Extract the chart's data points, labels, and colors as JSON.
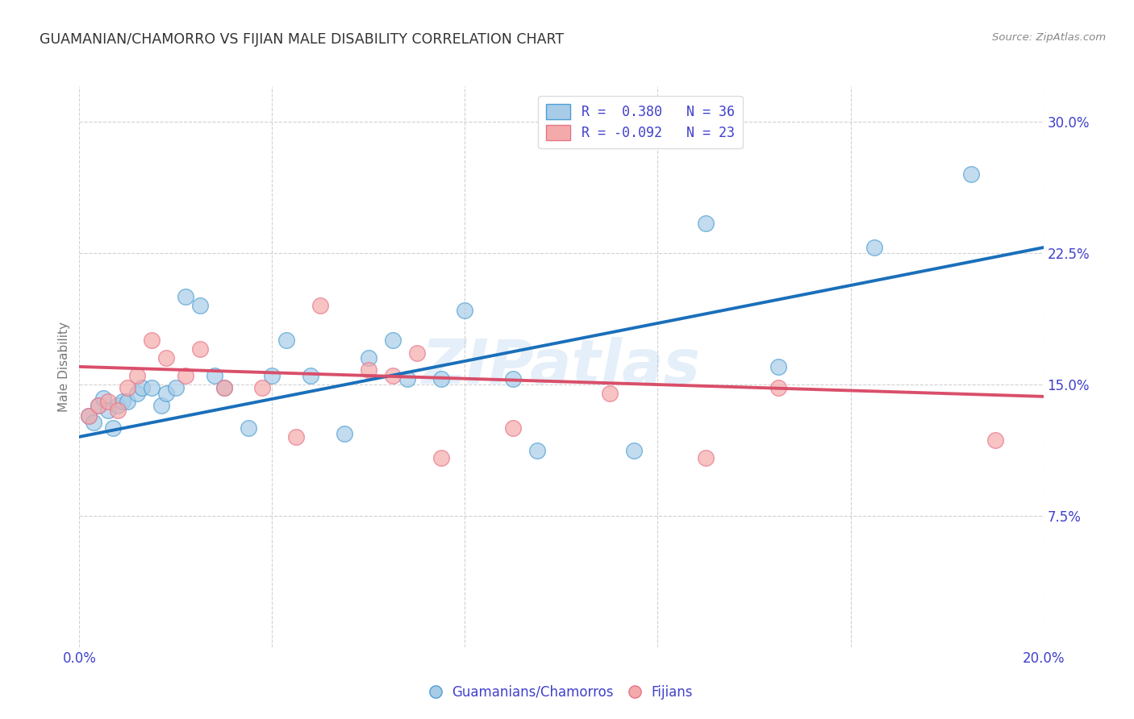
{
  "title": "GUAMANIAN/CHAMORRO VS FIJIAN MALE DISABILITY CORRELATION CHART",
  "source": "Source: ZipAtlas.com",
  "ylabel": "Male Disability",
  "xlim": [
    0.0,
    0.2
  ],
  "ylim": [
    0.0,
    0.32
  ],
  "xticks": [
    0.0,
    0.04,
    0.08,
    0.12,
    0.16,
    0.2
  ],
  "xticklabels": [
    "0.0%",
    "",
    "",
    "",
    "",
    "20.0%"
  ],
  "yticks": [
    0.075,
    0.15,
    0.225,
    0.3
  ],
  "yticklabels": [
    "7.5%",
    "15.0%",
    "22.5%",
    "30.0%"
  ],
  "blue_color": "#a8cce8",
  "pink_color": "#f4aaaa",
  "blue_edge_color": "#4d9fd4",
  "pink_edge_color": "#e8748a",
  "blue_line_color": "#1a6fba",
  "pink_line_color": "#d94f6a",
  "watermark": "ZIPatlas",
  "blue_scatter_x": [
    0.002,
    0.003,
    0.004,
    0.005,
    0.006,
    0.007,
    0.008,
    0.009,
    0.01,
    0.012,
    0.013,
    0.015,
    0.017,
    0.018,
    0.02,
    0.022,
    0.025,
    0.028,
    0.03,
    0.035,
    0.04,
    0.043,
    0.048,
    0.055,
    0.06,
    0.065,
    0.068,
    0.075,
    0.08,
    0.09,
    0.095,
    0.115,
    0.13,
    0.145,
    0.165,
    0.185
  ],
  "blue_scatter_y": [
    0.132,
    0.128,
    0.138,
    0.142,
    0.135,
    0.125,
    0.138,
    0.14,
    0.14,
    0.145,
    0.148,
    0.148,
    0.138,
    0.145,
    0.148,
    0.2,
    0.195,
    0.155,
    0.148,
    0.125,
    0.155,
    0.175,
    0.155,
    0.122,
    0.165,
    0.175,
    0.153,
    0.153,
    0.192,
    0.153,
    0.112,
    0.112,
    0.242,
    0.16,
    0.228,
    0.27
  ],
  "pink_scatter_x": [
    0.002,
    0.004,
    0.006,
    0.008,
    0.01,
    0.012,
    0.015,
    0.018,
    0.022,
    0.025,
    0.03,
    0.038,
    0.045,
    0.05,
    0.06,
    0.065,
    0.07,
    0.075,
    0.09,
    0.11,
    0.13,
    0.145,
    0.19
  ],
  "pink_scatter_y": [
    0.132,
    0.138,
    0.14,
    0.135,
    0.148,
    0.155,
    0.175,
    0.165,
    0.155,
    0.17,
    0.148,
    0.148,
    0.12,
    0.195,
    0.158,
    0.155,
    0.168,
    0.108,
    0.125,
    0.145,
    0.108,
    0.148,
    0.118
  ],
  "blue_trend_x": [
    0.0,
    0.2
  ],
  "blue_trend_y": [
    0.12,
    0.228
  ],
  "pink_trend_x": [
    0.0,
    0.2
  ],
  "pink_trend_y": [
    0.16,
    0.143
  ],
  "background_color": "#ffffff",
  "grid_color": "#cccccc",
  "title_color": "#333333",
  "source_color": "#888888",
  "accent_color": "#4040cc"
}
